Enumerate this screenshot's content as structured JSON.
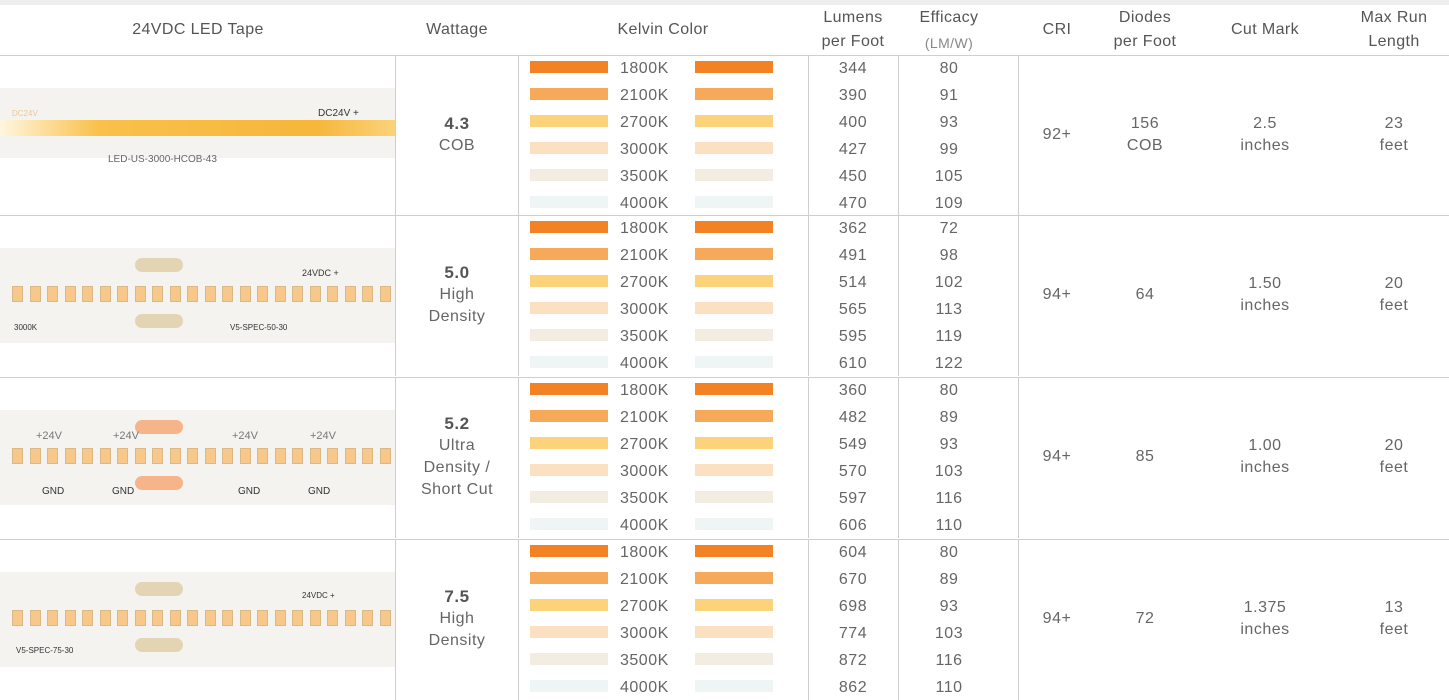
{
  "header": {
    "tape": "24VDC LED Tape",
    "wattage": "Wattage",
    "kelvin": "Kelvin Color",
    "lumens": [
      "Lumens",
      "per Foot"
    ],
    "efficacy": "Efficacy",
    "efficacy_unit": "(LM/W)",
    "cri": "CRI",
    "diodes": [
      "Diodes",
      "per Foot"
    ],
    "cut": "Cut Mark",
    "run": [
      "Max Run",
      "Length"
    ]
  },
  "kelvin_colors": [
    "#f28224",
    "#f7a95a",
    "#fcd27a",
    "#fbe0c2",
    "#f3ece0",
    "#eef5f4"
  ],
  "rows": [
    {
      "tape_labels": [
        "DC24V",
        "DC24V +",
        "LED-US-3000-HCOB-43"
      ],
      "wattage": "4.3",
      "type_lines": [
        "COB"
      ],
      "kelvins": [
        {
          "k": "1800K",
          "lumens": "344",
          "efficacy": "80"
        },
        {
          "k": "2100K",
          "lumens": "390",
          "efficacy": "91"
        },
        {
          "k": "2700K",
          "lumens": "400",
          "efficacy": "93"
        },
        {
          "k": "3000K",
          "lumens": "427",
          "efficacy": "99"
        },
        {
          "k": "3500K",
          "lumens": "450",
          "efficacy": "105"
        },
        {
          "k": "4000K",
          "lumens": "470",
          "efficacy": "109"
        }
      ],
      "cri": "92+",
      "diodes": [
        "156",
        "COB"
      ],
      "cut": [
        "2.5",
        "inches"
      ],
      "run": [
        "23",
        "feet"
      ]
    },
    {
      "tape_labels": [
        "24VDC +",
        "3000K",
        "V5-SPEC-50-30"
      ],
      "wattage": "5.0",
      "type_lines": [
        "High",
        "Density"
      ],
      "kelvins": [
        {
          "k": "1800K",
          "lumens": "362",
          "efficacy": "72"
        },
        {
          "k": "2100K",
          "lumens": "491",
          "efficacy": "98"
        },
        {
          "k": "2700K",
          "lumens": "514",
          "efficacy": "102"
        },
        {
          "k": "3000K",
          "lumens": "565",
          "efficacy": "113"
        },
        {
          "k": "3500K",
          "lumens": "595",
          "efficacy": "119"
        },
        {
          "k": "4000K",
          "lumens": "610",
          "efficacy": "122"
        }
      ],
      "cri": "94+",
      "diodes": [
        "64"
      ],
      "cut": [
        "1.50",
        "inches"
      ],
      "run": [
        "20",
        "feet"
      ]
    },
    {
      "tape_labels": [
        "+24V",
        "+24V",
        "+24V",
        "+24V",
        "GND",
        "GND",
        "GND",
        "GND"
      ],
      "wattage": "5.2",
      "type_lines": [
        "Ultra",
        "Density /",
        "Short Cut"
      ],
      "kelvins": [
        {
          "k": "1800K",
          "lumens": "360",
          "efficacy": "80"
        },
        {
          "k": "2100K",
          "lumens": "482",
          "efficacy": "89"
        },
        {
          "k": "2700K",
          "lumens": "549",
          "efficacy": "93"
        },
        {
          "k": "3000K",
          "lumens": "570",
          "efficacy": "103"
        },
        {
          "k": "3500K",
          "lumens": "597",
          "efficacy": "116"
        },
        {
          "k": "4000K",
          "lumens": "606",
          "efficacy": "110"
        }
      ],
      "cri": "94+",
      "diodes": [
        "85"
      ],
      "cut": [
        "1.00",
        "inches"
      ],
      "run": [
        "20",
        "feet"
      ]
    },
    {
      "tape_labels": [
        "24VDC +",
        "V5-SPEC-75-30"
      ],
      "wattage": "7.5",
      "type_lines": [
        "High",
        "Density"
      ],
      "kelvins": [
        {
          "k": "1800K",
          "lumens": "604",
          "efficacy": "80"
        },
        {
          "k": "2100K",
          "lumens": "670",
          "efficacy": "89"
        },
        {
          "k": "2700K",
          "lumens": "698",
          "efficacy": "93"
        },
        {
          "k": "3000K",
          "lumens": "774",
          "efficacy": "103"
        },
        {
          "k": "3500K",
          "lumens": "872",
          "efficacy": "116"
        },
        {
          "k": "4000K",
          "lumens": "862",
          "efficacy": "110"
        }
      ],
      "cri": "94+",
      "diodes": [
        "72"
      ],
      "cut": [
        "1.375",
        "inches"
      ],
      "run": [
        "13",
        "feet"
      ]
    }
  ]
}
